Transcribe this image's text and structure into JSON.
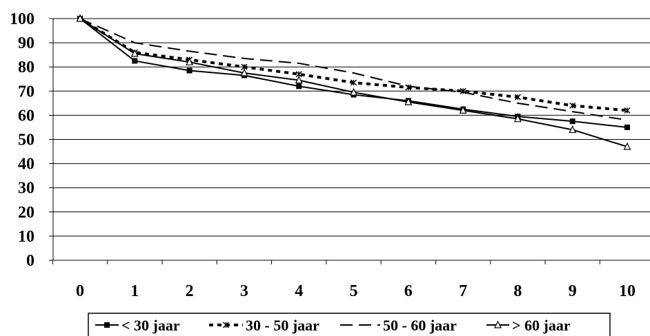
{
  "chart_data": {
    "type": "line",
    "title": "",
    "xlabel": "",
    "ylabel": "",
    "x": [
      0,
      1,
      2,
      3,
      4,
      5,
      6,
      7,
      8,
      9,
      10
    ],
    "xlim": [
      0,
      10
    ],
    "ylim": [
      0,
      100
    ],
    "yticks": [
      0,
      10,
      20,
      30,
      40,
      50,
      60,
      70,
      80,
      90,
      100
    ],
    "grid": "horizontal",
    "legend_position": "bottom",
    "series": [
      {
        "name": "< 30 jaar",
        "marker": "square",
        "line": "solid",
        "values": [
          100,
          82.5,
          78.5,
          76.5,
          72,
          68.5,
          66,
          62.5,
          59.5,
          57.5,
          55
        ]
      },
      {
        "name": "30 - 50 jaar",
        "marker": "star",
        "line": "dotted",
        "values": [
          100,
          86,
          83,
          80,
          77,
          73.5,
          71.5,
          70,
          67.5,
          64,
          62
        ]
      },
      {
        "name": "50 - 60 jaar",
        "marker": "none",
        "line": "dashed",
        "values": [
          100,
          90,
          86.5,
          83.5,
          81.5,
          77.5,
          72,
          69.5,
          65,
          61.5,
          58
        ]
      },
      {
        "name": "> 60 jaar",
        "marker": "triangle",
        "line": "solid",
        "values": [
          100,
          85.5,
          82,
          77.5,
          74.5,
          69.5,
          65.5,
          62,
          58.5,
          54,
          47
        ]
      }
    ]
  }
}
